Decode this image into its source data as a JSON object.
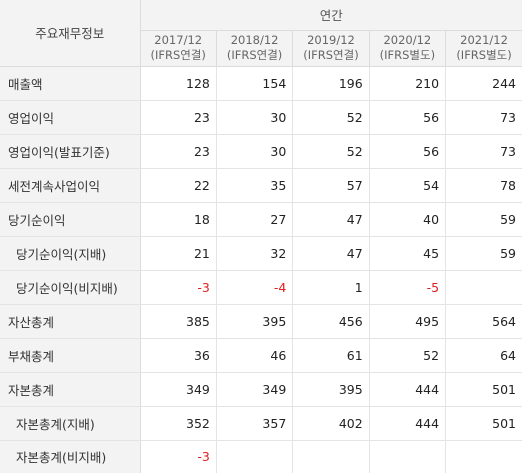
{
  "header": {
    "corner_label": "주요재무정보",
    "group_label": "연간",
    "columns": [
      {
        "period": "2017/12",
        "basis": "(IFRS연결)"
      },
      {
        "period": "2018/12",
        "basis": "(IFRS연결)"
      },
      {
        "period": "2019/12",
        "basis": "(IFRS연결)"
      },
      {
        "period": "2020/12",
        "basis": "(IFRS별도)"
      },
      {
        "period": "2021/12",
        "basis": "(IFRS별도)"
      }
    ]
  },
  "rows": [
    {
      "label": "매출액",
      "sub": false,
      "values": [
        "128",
        "154",
        "196",
        "210",
        "244"
      ]
    },
    {
      "label": "영업이익",
      "sub": false,
      "values": [
        "23",
        "30",
        "52",
        "56",
        "73"
      ]
    },
    {
      "label": "영업이익(발표기준)",
      "sub": false,
      "values": [
        "23",
        "30",
        "52",
        "56",
        "73"
      ]
    },
    {
      "label": "세전계속사업이익",
      "sub": false,
      "values": [
        "22",
        "35",
        "57",
        "54",
        "78"
      ]
    },
    {
      "label": "당기순이익",
      "sub": false,
      "values": [
        "18",
        "27",
        "47",
        "40",
        "59"
      ]
    },
    {
      "label": "당기순이익(지배)",
      "sub": true,
      "values": [
        "21",
        "32",
        "47",
        "45",
        "59"
      ]
    },
    {
      "label": "당기순이익(비지배)",
      "sub": true,
      "values": [
        "-3",
        "-4",
        "1",
        "-5",
        ""
      ]
    },
    {
      "label": "자산총계",
      "sub": false,
      "values": [
        "385",
        "395",
        "456",
        "495",
        "564"
      ]
    },
    {
      "label": "부채총계",
      "sub": false,
      "values": [
        "36",
        "46",
        "61",
        "52",
        "64"
      ]
    },
    {
      "label": "자본총계",
      "sub": false,
      "values": [
        "349",
        "349",
        "395",
        "444",
        "501"
      ]
    },
    {
      "label": "자본총계(지배)",
      "sub": true,
      "values": [
        "352",
        "357",
        "402",
        "444",
        "501"
      ]
    },
    {
      "label": "자본총계(비지배)",
      "sub": true,
      "values": [
        "-3",
        "",
        "",
        "",
        ""
      ]
    }
  ],
  "colors": {
    "negative": "#e02020",
    "header_bg": "#f3f3f3",
    "border": "#dcdcdc"
  }
}
